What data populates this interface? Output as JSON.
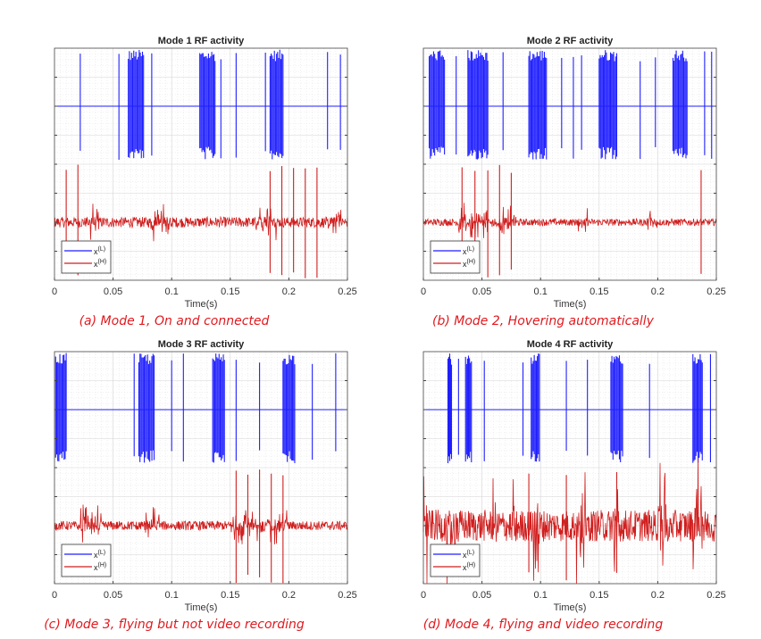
{
  "chart_data": [
    {
      "type": "line",
      "title": "Mode 1 RF activity",
      "caption": "(a) Mode 1, On and connected",
      "xlabel": "Time(s)",
      "xlim": [
        0,
        0.25
      ],
      "xticks": [
        "0",
        "0.05",
        "0.1",
        "0.15",
        "0.2",
        "0.25"
      ],
      "ylim": [
        -4,
        4
      ],
      "grid": true,
      "legend": {
        "placement": "bottom-left",
        "entries": [
          {
            "base": "x",
            "sup": "(L)",
            "color": "#1f1fff"
          },
          {
            "base": "x",
            "sup": "(H)",
            "color": "#d01f1f"
          }
        ]
      },
      "series": [
        {
          "name": "x(L)",
          "color": "#1f1fff",
          "baseline": 2,
          "spikes": [
            0.022,
            0.055,
            0.083,
            0.142,
            0.155,
            0.18,
            0.233,
            0.244
          ],
          "bursts": [
            [
              0.063,
              0.076
            ],
            [
              0.124,
              0.137
            ],
            [
              0.184,
              0.195
            ]
          ]
        },
        {
          "name": "x(H)",
          "color": "#d01f1f",
          "baseline": -2,
          "noise": 0.18,
          "spikes": [
            0.01,
            0.02,
            0.184,
            0.194,
            0.204,
            0.214,
            0.224
          ],
          "noisy_regions": [
            [
              0.028,
              0.038
            ],
            [
              0.082,
              0.1
            ],
            [
              0.17,
              0.19
            ],
            [
              0.232,
              0.245
            ]
          ]
        }
      ]
    },
    {
      "type": "line",
      "title": "Mode 2 RF activity",
      "caption": "(b) Mode 2, Hovering automatically",
      "xlabel": "Time(s)",
      "xlim": [
        0,
        0.25
      ],
      "xticks": [
        "0",
        "0.05",
        "0.1",
        "0.15",
        "0.2",
        "0.25"
      ],
      "ylim": [
        -4,
        4
      ],
      "grid": true,
      "legend": {
        "placement": "bottom-left",
        "entries": [
          {
            "base": "x",
            "sup": "(L)",
            "color": "#1f1fff"
          },
          {
            "base": "x",
            "sup": "(H)",
            "color": "#d01f1f"
          }
        ]
      },
      "series": [
        {
          "name": "x(L)",
          "color": "#1f1fff",
          "baseline": 2,
          "spikes": [
            0.028,
            0.068,
            0.118,
            0.128,
            0.135,
            0.185,
            0.198,
            0.24,
            0.246
          ],
          "bursts": [
            [
              0.005,
              0.018
            ],
            [
              0.038,
              0.055
            ],
            [
              0.09,
              0.105
            ],
            [
              0.15,
              0.165
            ],
            [
              0.213,
              0.225
            ]
          ]
        },
        {
          "name": "x(H)",
          "color": "#d01f1f",
          "baseline": -2,
          "noise": 0.12,
          "spikes": [
            0.033,
            0.044,
            0.055,
            0.065,
            0.075,
            0.237
          ],
          "noisy_regions": [
            [
              0.03,
              0.08
            ],
            [
              0.13,
              0.14
            ],
            [
              0.19,
              0.2
            ]
          ]
        }
      ]
    },
    {
      "type": "line",
      "title": "Mode 3 RF activity",
      "caption": "(c) Mode 3, flying but not video recording",
      "xlabel": "Time(s)",
      "xlim": [
        0,
        0.25
      ],
      "xticks": [
        "0",
        "0.05",
        "0.1",
        "0.15",
        "0.2",
        "0.25"
      ],
      "ylim": [
        -4,
        4
      ],
      "grid": true,
      "legend": {
        "placement": "bottom-left",
        "entries": [
          {
            "base": "x",
            "sup": "(L)",
            "color": "#1f1fff"
          },
          {
            "base": "x",
            "sup": "(H)",
            "color": "#d01f1f"
          }
        ]
      },
      "series": [
        {
          "name": "x(L)",
          "color": "#1f1fff",
          "baseline": 2,
          "spikes": [
            0.068,
            0.1,
            0.11,
            0.155,
            0.175,
            0.22,
            0.24
          ],
          "bursts": [
            [
              0.001,
              0.01
            ],
            [
              0.072,
              0.085
            ],
            [
              0.135,
              0.145
            ],
            [
              0.195,
              0.205
            ]
          ]
        },
        {
          "name": "x(H)",
          "color": "#d01f1f",
          "baseline": -2,
          "noise": 0.16,
          "spikes": [
            0.155,
            0.165,
            0.175,
            0.185,
            0.195
          ],
          "noisy_regions": [
            [
              0.02,
              0.04
            ],
            [
              0.07,
              0.09
            ],
            [
              0.15,
              0.2
            ]
          ]
        }
      ]
    },
    {
      "type": "line",
      "title": "Mode 4 RF activity",
      "caption": "(d) Mode 4, flying and video recording",
      "xlabel": "Time(s)",
      "xlim": [
        0,
        0.25
      ],
      "xticks": [
        "0",
        "0.05",
        "0.1",
        "0.15",
        "0.2",
        "0.25"
      ],
      "ylim": [
        -4,
        4
      ],
      "grid": true,
      "legend": {
        "placement": "bottom-left",
        "entries": [
          {
            "base": "x",
            "sup": "(L)",
            "color": "#1f1fff"
          },
          {
            "base": "x",
            "sup": "(H)",
            "color": "#d01f1f"
          }
        ]
      },
      "series": [
        {
          "name": "x(L)",
          "color": "#1f1fff",
          "baseline": 2,
          "spikes": [
            0.03,
            0.052,
            0.085,
            0.122,
            0.14,
            0.193,
            0.245
          ],
          "bursts": [
            [
              0.021,
              0.024
            ],
            [
              0.036,
              0.041
            ],
            [
              0.092,
              0.099
            ],
            [
              0.16,
              0.17
            ],
            [
              0.23,
              0.238
            ]
          ]
        },
        {
          "name": "x(H)",
          "color": "#d01f1f",
          "baseline": -2,
          "noise": 0.55,
          "spikes": [
            0.09,
            0.122,
            0.165
          ],
          "noisy_regions": [
            [
              0.0,
              0.004
            ],
            [
              0.02,
              0.03
            ],
            [
              0.058,
              0.064
            ],
            [
              0.075,
              0.08
            ],
            [
              0.092,
              0.1
            ],
            [
              0.13,
              0.14
            ],
            [
              0.16,
              0.168
            ],
            [
              0.2,
              0.21
            ],
            [
              0.23,
              0.24
            ]
          ]
        }
      ]
    }
  ]
}
